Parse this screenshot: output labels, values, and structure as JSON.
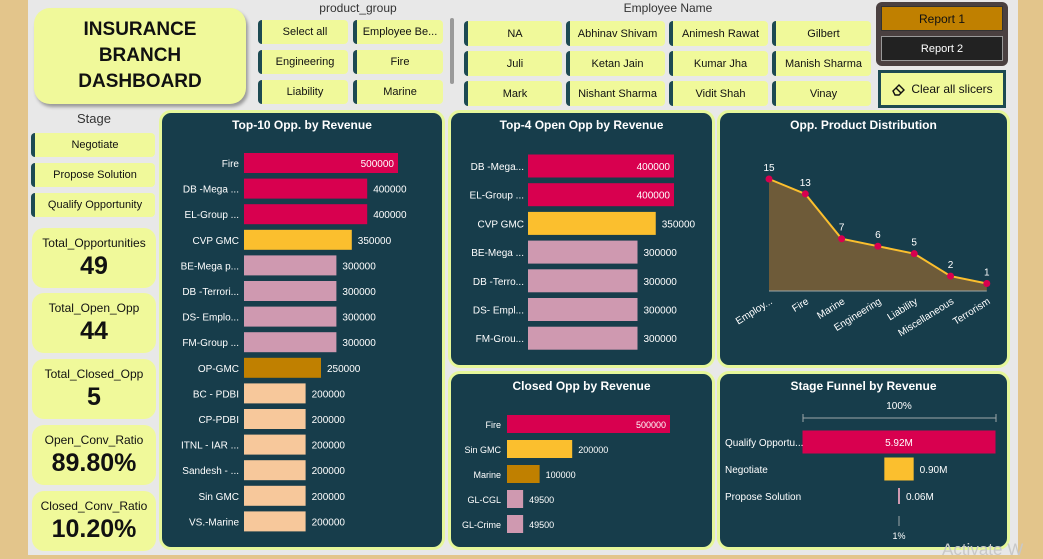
{
  "title": "INSURANCE BRANCH DASHBOARD",
  "product_group": {
    "header": "product_group",
    "items": [
      "Select all",
      "Employee Be...",
      "Engineering",
      "Fire",
      "Liability",
      "Marine"
    ]
  },
  "employee": {
    "header": "Employee Name",
    "items": [
      "NA",
      "Abhinav Shivam",
      "Animesh Rawat",
      "Gilbert",
      "Juli",
      "Ketan Jain",
      "Kumar Jha",
      "Manish Sharma",
      "Mark",
      "Nishant Sharma",
      "Vidit Shah",
      "Vinay"
    ]
  },
  "reports": {
    "report1": "Report 1",
    "report2": "Report 2",
    "clear": "Clear all slicers"
  },
  "stage": {
    "header": "Stage",
    "items": [
      "Negotiate",
      "Propose Solution",
      "Qualify Opportunity"
    ]
  },
  "kpis": [
    {
      "label": "Total_Opportunities",
      "value": "49"
    },
    {
      "label": "Total_Open_Opp",
      "value": "44"
    },
    {
      "label": "Total_Closed_Opp",
      "value": "5"
    },
    {
      "label": "Open_Conv_Ratio",
      "value": "89.80%"
    },
    {
      "label": "Closed_Conv_Ratio",
      "value": "10.20%"
    }
  ],
  "watermark": "Activate W",
  "colors": {
    "crimson": "#d8004f",
    "gold": "#fbbf2e",
    "darkgold": "#c08000",
    "pink": "#cf99b0",
    "peach": "#f7c89b",
    "panel": "#173d4b",
    "slicer": "#f0f99a"
  },
  "chart_data": [
    {
      "type": "bar",
      "orientation": "horizontal",
      "title": "Top-10 Opp. by Revenue",
      "categories": [
        "Fire",
        "DB -Mega ...",
        "EL-Group ...",
        "CVP GMC",
        "BE-Mega p...",
        "DB -Terrori...",
        "DS- Emplo...",
        "FM-Group ...",
        "OP-GMC",
        "BC - PDBI",
        "CP-PDBI",
        "ITNL - IAR ...",
        "Sandesh - ...",
        "Sin GMC",
        "VS.-Marine"
      ],
      "values": [
        500000,
        400000,
        400000,
        350000,
        300000,
        300000,
        300000,
        300000,
        250000,
        200000,
        200000,
        200000,
        200000,
        200000,
        200000
      ],
      "value_labels": [
        "500000",
        "400000",
        "400000",
        "350000",
        "300000",
        "300000",
        "300000",
        "300000",
        "250000",
        "200000",
        "200000",
        "200000",
        "200000",
        "200000",
        "200000"
      ],
      "colors": [
        "#d8004f",
        "#d8004f",
        "#d8004f",
        "#fbbf2e",
        "#cf99b0",
        "#cf99b0",
        "#cf99b0",
        "#cf99b0",
        "#c08000",
        "#f7c89b",
        "#f7c89b",
        "#f7c89b",
        "#f7c89b",
        "#f7c89b",
        "#f7c89b"
      ]
    },
    {
      "type": "bar",
      "orientation": "horizontal",
      "title": "Top-4 Open Opp by Revenue",
      "categories": [
        "DB -Mega...",
        "EL-Group ...",
        "CVP GMC",
        "BE-Mega ...",
        "DB -Terro...",
        "DS- Empl...",
        "FM-Grou..."
      ],
      "values": [
        400000,
        400000,
        350000,
        300000,
        300000,
        300000,
        300000
      ],
      "value_labels": [
        "400000",
        "400000",
        "350000",
        "300000",
        "300000",
        "300000",
        "300000"
      ],
      "colors": [
        "#d8004f",
        "#d8004f",
        "#fbbf2e",
        "#cf99b0",
        "#cf99b0",
        "#cf99b0",
        "#cf99b0"
      ]
    },
    {
      "type": "area",
      "title": "Opp. Product Distribution",
      "categories": [
        "Employ...",
        "Fire",
        "Marine",
        "Engineering",
        "Liability",
        "Miscellaneous",
        "Terrorism"
      ],
      "values": [
        15,
        13,
        7,
        6,
        5,
        2,
        1
      ],
      "value_labels": [
        "15",
        "13",
        "7",
        "6",
        "5",
        "2",
        "1"
      ]
    },
    {
      "type": "bar",
      "orientation": "horizontal",
      "title": "Closed Opp by Revenue",
      "categories": [
        "Fire",
        "Sin GMC",
        "Marine",
        "GL-CGL",
        "GL-Crime"
      ],
      "values": [
        500000,
        200000,
        100000,
        49500,
        49500
      ],
      "value_labels": [
        "500000",
        "200000",
        "100000",
        "49500",
        "49500"
      ],
      "colors": [
        "#d8004f",
        "#fbbf2e",
        "#c08000",
        "#cf99b0",
        "#cf99b0"
      ]
    },
    {
      "type": "bar",
      "orientation": "funnel",
      "title": "Stage Funnel by Revenue",
      "categories": [
        "Qualify Opportu...",
        "Negotiate",
        "Propose Solution"
      ],
      "values": [
        5.92,
        0.9,
        0.06
      ],
      "value_labels": [
        "5.92M",
        "0.90M",
        "0.06M"
      ],
      "top_percent": "100%",
      "bottom_percent": "1%",
      "colors": [
        "#d8004f",
        "#fbbf2e",
        "#cf99b0"
      ]
    }
  ]
}
